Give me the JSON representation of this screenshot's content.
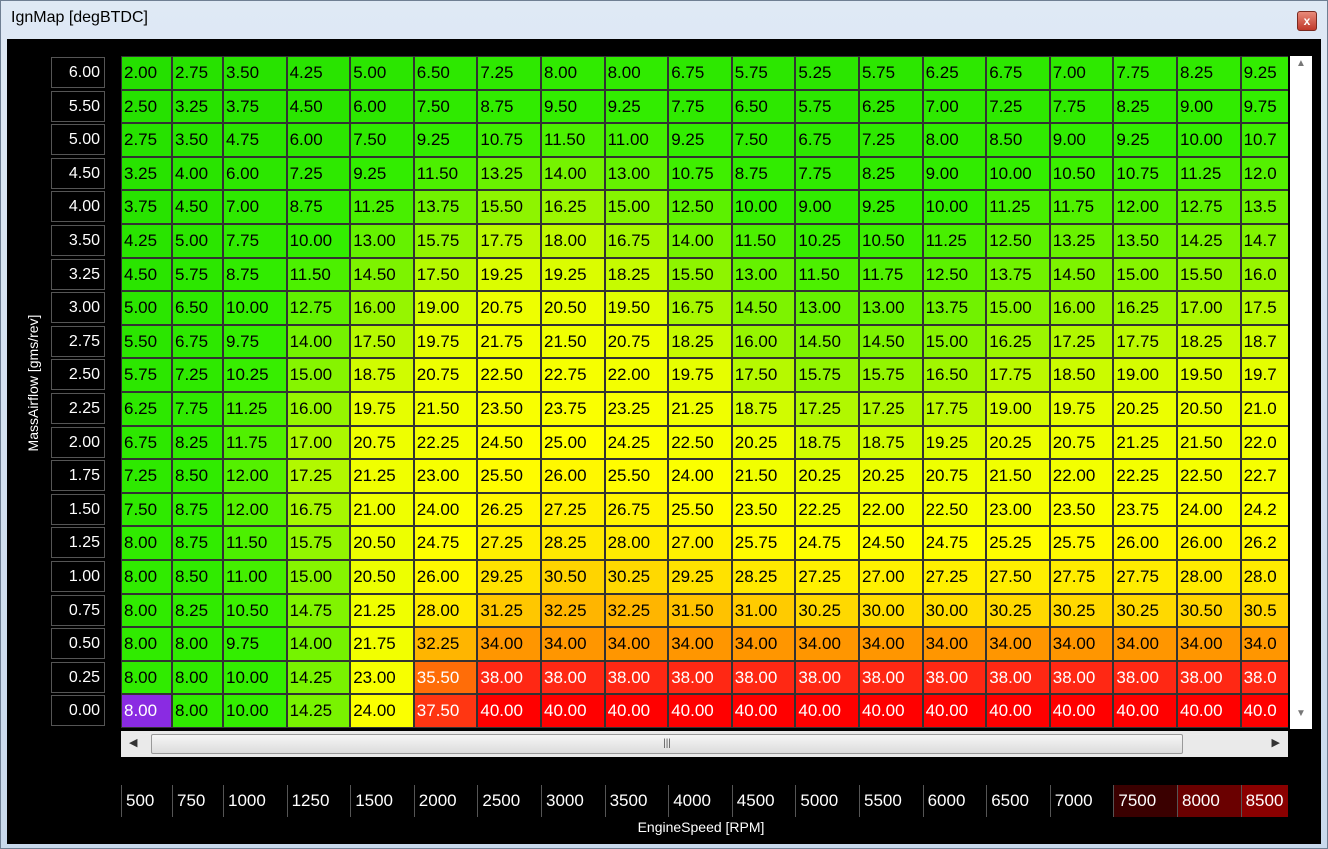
{
  "window": {
    "title": "IgnMap [degBTDC]"
  },
  "table": {
    "x_axis_label": "EngineSpeed [RPM]",
    "y_axis_label": "MassAirflow [gms/rev]",
    "columns": [
      "500",
      "750",
      "1000",
      "1250",
      "1500",
      "2000",
      "2500",
      "3000",
      "3500",
      "4000",
      "4500",
      "5000",
      "5500",
      "6000",
      "6500",
      "7000",
      "7500",
      "8000",
      "8500"
    ],
    "row_labels": [
      "6.00",
      "5.50",
      "5.00",
      "4.50",
      "4.00",
      "3.50",
      "3.25",
      "3.00",
      "2.75",
      "2.50",
      "2.25",
      "2.00",
      "1.75",
      "1.50",
      "1.25",
      "1.00",
      "0.75",
      "0.50",
      "0.25",
      "0.00"
    ],
    "selected_cell": [
      19,
      0
    ],
    "rows": [
      [
        "2.00",
        "2.75",
        "3.50",
        "4.25",
        "5.00",
        "6.50",
        "7.25",
        "8.00",
        "8.00",
        "6.75",
        "5.75",
        "5.25",
        "5.75",
        "6.25",
        "6.75",
        "7.00",
        "7.75",
        "8.25",
        "9.25"
      ],
      [
        "2.50",
        "3.25",
        "3.75",
        "4.50",
        "6.00",
        "7.50",
        "8.75",
        "9.50",
        "9.25",
        "7.75",
        "6.50",
        "5.75",
        "6.25",
        "7.00",
        "7.25",
        "7.75",
        "8.25",
        "9.00",
        "9.75"
      ],
      [
        "2.75",
        "3.50",
        "4.75",
        "6.00",
        "7.50",
        "9.25",
        "10.75",
        "11.50",
        "11.00",
        "9.25",
        "7.50",
        "6.75",
        "7.25",
        "8.00",
        "8.50",
        "9.00",
        "9.25",
        "10.00",
        "10.7"
      ],
      [
        "3.25",
        "4.00",
        "6.00",
        "7.25",
        "9.25",
        "11.50",
        "13.25",
        "14.00",
        "13.00",
        "10.75",
        "8.75",
        "7.75",
        "8.25",
        "9.00",
        "10.00",
        "10.50",
        "10.75",
        "11.25",
        "12.0"
      ],
      [
        "3.75",
        "4.50",
        "7.00",
        "8.75",
        "11.25",
        "13.75",
        "15.50",
        "16.25",
        "15.00",
        "12.50",
        "10.00",
        "9.00",
        "9.25",
        "10.00",
        "11.25",
        "11.75",
        "12.00",
        "12.75",
        "13.5"
      ],
      [
        "4.25",
        "5.00",
        "7.75",
        "10.00",
        "13.00",
        "15.75",
        "17.75",
        "18.00",
        "16.75",
        "14.00",
        "11.50",
        "10.25",
        "10.50",
        "11.25",
        "12.50",
        "13.25",
        "13.50",
        "14.25",
        "14.7"
      ],
      [
        "4.50",
        "5.75",
        "8.75",
        "11.50",
        "14.50",
        "17.50",
        "19.25",
        "19.25",
        "18.25",
        "15.50",
        "13.00",
        "11.50",
        "11.75",
        "12.50",
        "13.75",
        "14.50",
        "15.00",
        "15.50",
        "16.0"
      ],
      [
        "5.00",
        "6.50",
        "10.00",
        "12.75",
        "16.00",
        "19.00",
        "20.75",
        "20.50",
        "19.50",
        "16.75",
        "14.50",
        "13.00",
        "13.00",
        "13.75",
        "15.00",
        "16.00",
        "16.25",
        "17.00",
        "17.5"
      ],
      [
        "5.50",
        "6.75",
        "9.75",
        "14.00",
        "17.50",
        "19.75",
        "21.75",
        "21.50",
        "20.75",
        "18.25",
        "16.00",
        "14.50",
        "14.50",
        "15.00",
        "16.25",
        "17.25",
        "17.75",
        "18.25",
        "18.7"
      ],
      [
        "5.75",
        "7.25",
        "10.25",
        "15.00",
        "18.75",
        "20.75",
        "22.50",
        "22.75",
        "22.00",
        "19.75",
        "17.50",
        "15.75",
        "15.75",
        "16.50",
        "17.75",
        "18.50",
        "19.00",
        "19.50",
        "19.7"
      ],
      [
        "6.25",
        "7.75",
        "11.25",
        "16.00",
        "19.75",
        "21.50",
        "23.50",
        "23.75",
        "23.25",
        "21.25",
        "18.75",
        "17.25",
        "17.25",
        "17.75",
        "19.00",
        "19.75",
        "20.25",
        "20.50",
        "21.0"
      ],
      [
        "6.75",
        "8.25",
        "11.75",
        "17.00",
        "20.75",
        "22.25",
        "24.50",
        "25.00",
        "24.25",
        "22.50",
        "20.25",
        "18.75",
        "18.75",
        "19.25",
        "20.25",
        "20.75",
        "21.25",
        "21.50",
        "22.0"
      ],
      [
        "7.25",
        "8.50",
        "12.00",
        "17.25",
        "21.25",
        "23.00",
        "25.50",
        "26.00",
        "25.50",
        "24.00",
        "21.50",
        "20.25",
        "20.25",
        "20.75",
        "21.50",
        "22.00",
        "22.25",
        "22.50",
        "22.7"
      ],
      [
        "7.50",
        "8.75",
        "12.00",
        "16.75",
        "21.00",
        "24.00",
        "26.25",
        "27.25",
        "26.75",
        "25.50",
        "23.50",
        "22.25",
        "22.00",
        "22.50",
        "23.00",
        "23.50",
        "23.75",
        "24.00",
        "24.2"
      ],
      [
        "8.00",
        "8.75",
        "11.50",
        "15.75",
        "20.50",
        "24.75",
        "27.25",
        "28.25",
        "28.00",
        "27.00",
        "25.75",
        "24.75",
        "24.50",
        "24.75",
        "25.25",
        "25.75",
        "26.00",
        "26.00",
        "26.2"
      ],
      [
        "8.00",
        "8.50",
        "11.00",
        "15.00",
        "20.50",
        "26.00",
        "29.25",
        "30.50",
        "30.25",
        "29.25",
        "28.25",
        "27.25",
        "27.00",
        "27.25",
        "27.50",
        "27.75",
        "27.75",
        "28.00",
        "28.0"
      ],
      [
        "8.00",
        "8.25",
        "10.50",
        "14.75",
        "21.25",
        "28.00",
        "31.25",
        "32.25",
        "32.25",
        "31.50",
        "31.00",
        "30.25",
        "30.00",
        "30.00",
        "30.25",
        "30.25",
        "30.25",
        "30.50",
        "30.5"
      ],
      [
        "8.00",
        "8.00",
        "9.75",
        "14.00",
        "21.75",
        "32.25",
        "34.00",
        "34.00",
        "34.00",
        "34.00",
        "34.00",
        "34.00",
        "34.00",
        "34.00",
        "34.00",
        "34.00",
        "34.00",
        "34.00",
        "34.0"
      ],
      [
        "8.00",
        "8.00",
        "10.00",
        "14.25",
        "23.00",
        "35.50",
        "38.00",
        "38.00",
        "38.00",
        "38.00",
        "38.00",
        "38.00",
        "38.00",
        "38.00",
        "38.00",
        "38.00",
        "38.00",
        "38.00",
        "38.0"
      ],
      [
        "8.00",
        "8.00",
        "10.00",
        "14.25",
        "24.00",
        "37.50",
        "40.00",
        "40.00",
        "40.00",
        "40.00",
        "40.00",
        "40.00",
        "40.00",
        "40.00",
        "40.00",
        "40.00",
        "40.00",
        "40.00",
        "40.0"
      ]
    ]
  }
}
